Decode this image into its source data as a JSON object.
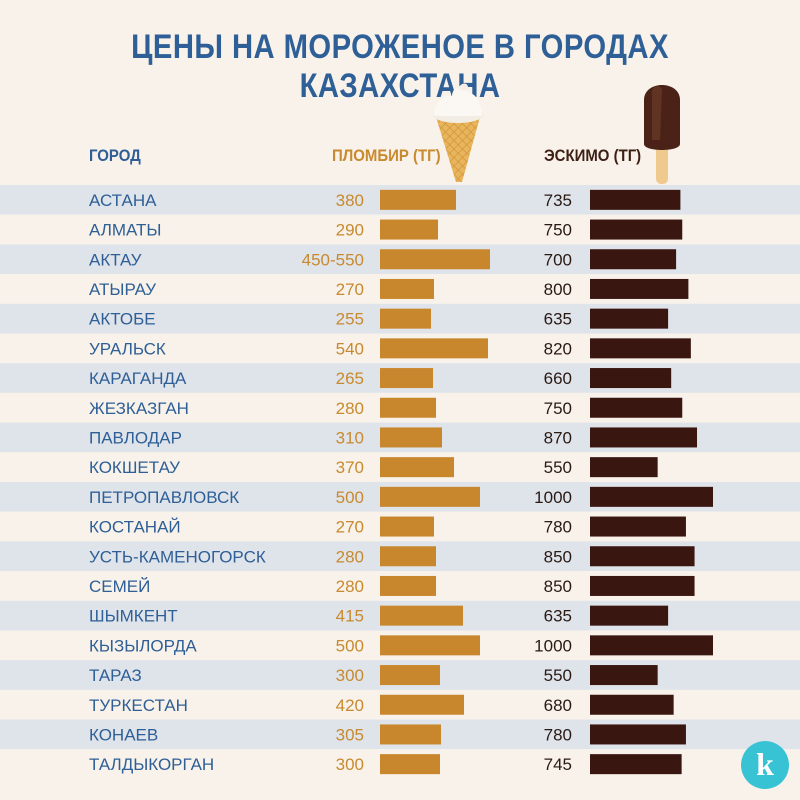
{
  "chart_data": {
    "type": "bar",
    "title": "ЦЕНЫ НА МОРОЖЕНОЕ В ГОРОДАХ КАЗАХСТАНА",
    "category_header": "ГОРОД",
    "categories": [
      "АСТАНА",
      "АЛМАТЫ",
      "АКТАУ",
      "АТЫРАУ",
      "АКТОБЕ",
      "УРАЛЬСК",
      "КАРАГАНДА",
      "ЖЕЗКАЗГАН",
      "ПАВЛОДАР",
      "КОКШЕТАУ",
      "ПЕТРОПАВЛОВСК",
      "КОСТАНАЙ",
      "УСТЬ-КАМЕНОГОРСК",
      "СЕМЕЙ",
      "ШЫМКЕНТ",
      "КЫЗЫЛОРДА",
      "ТАРАЗ",
      "ТУРКЕСТАН",
      "КОНАЕВ",
      "ТАЛДЫКОРГАН"
    ],
    "series": [
      {
        "name": "ПЛОМБИР (ТГ)",
        "color": "#c8872c",
        "labels": [
          "380",
          "290",
          "450-550",
          "270",
          "255",
          "540",
          "265",
          "280",
          "310",
          "370",
          "500",
          "270",
          "280",
          "280",
          "415",
          "500",
          "300",
          "420",
          "305",
          "300"
        ],
        "values": [
          380,
          290,
          550,
          270,
          255,
          540,
          265,
          280,
          310,
          370,
          500,
          270,
          280,
          280,
          415,
          500,
          300,
          420,
          305,
          300
        ]
      },
      {
        "name": "ЭСКИМО (ТГ)",
        "color": "#3a1610",
        "labels": [
          "735",
          "750",
          "700",
          "800",
          "635",
          "820",
          "660",
          "750",
          "870",
          "550",
          "1000",
          "780",
          "850",
          "850",
          "635",
          "1000",
          "550",
          "680",
          "780",
          "745"
        ],
        "values": [
          735,
          750,
          700,
          800,
          635,
          820,
          660,
          750,
          870,
          550,
          1000,
          780,
          850,
          850,
          635,
          1000,
          550,
          680,
          780,
          745
        ]
      }
    ],
    "row_stripe_colors": [
      "#dfe3ea",
      "#f8f2ea"
    ],
    "icons": [
      "ice-cream-cone-icon",
      "eskimo-popsicle-icon"
    ]
  },
  "logo": {
    "mark": "k",
    "color": "#38c3d4"
  }
}
